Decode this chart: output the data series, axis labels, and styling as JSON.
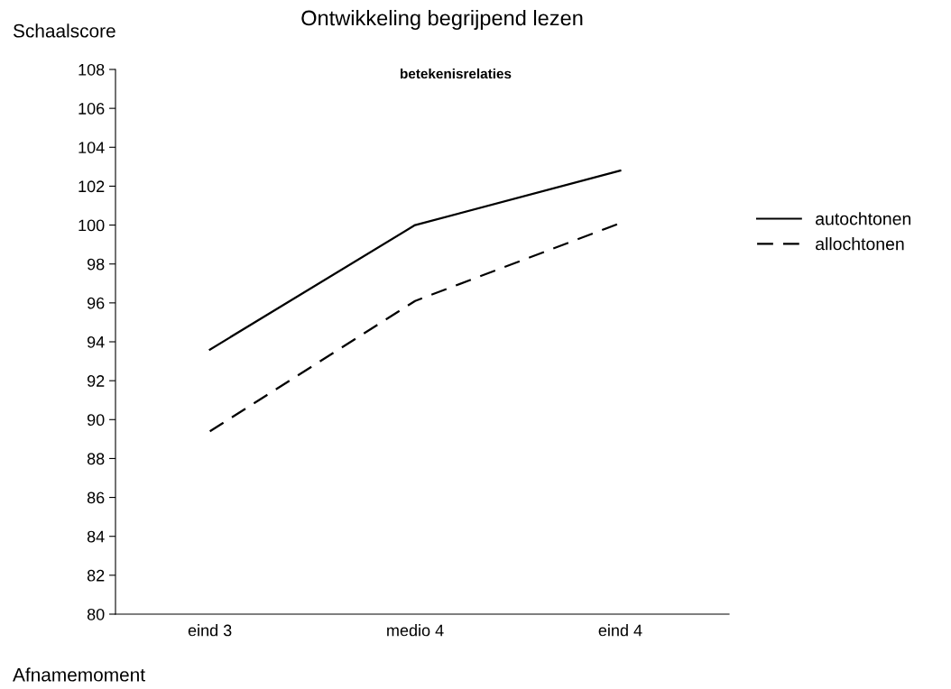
{
  "chart_data": {
    "type": "line",
    "title": "Ontwikkeling begrijpend lezen",
    "subtitle": "betekenisrelaties",
    "xlabel": "Afnamemoment",
    "ylabel": "Schaalscore",
    "categories": [
      "eind 3",
      "medio 4",
      "eind 4"
    ],
    "series": [
      {
        "name": "autochtonen",
        "color": "#000000",
        "line_style": "solid",
        "values": [
          93.6,
          100.0,
          102.8
        ]
      },
      {
        "name": "allochtonen",
        "color": "#000000",
        "line_style": "dashed",
        "values": [
          89.4,
          96.1,
          100.1
        ]
      }
    ],
    "ylim": [
      80,
      108
    ],
    "yticks": [
      80,
      82,
      84,
      86,
      88,
      90,
      92,
      94,
      96,
      98,
      100,
      102,
      104,
      106,
      108
    ],
    "grid": false,
    "legend": "right",
    "marker": "none"
  }
}
